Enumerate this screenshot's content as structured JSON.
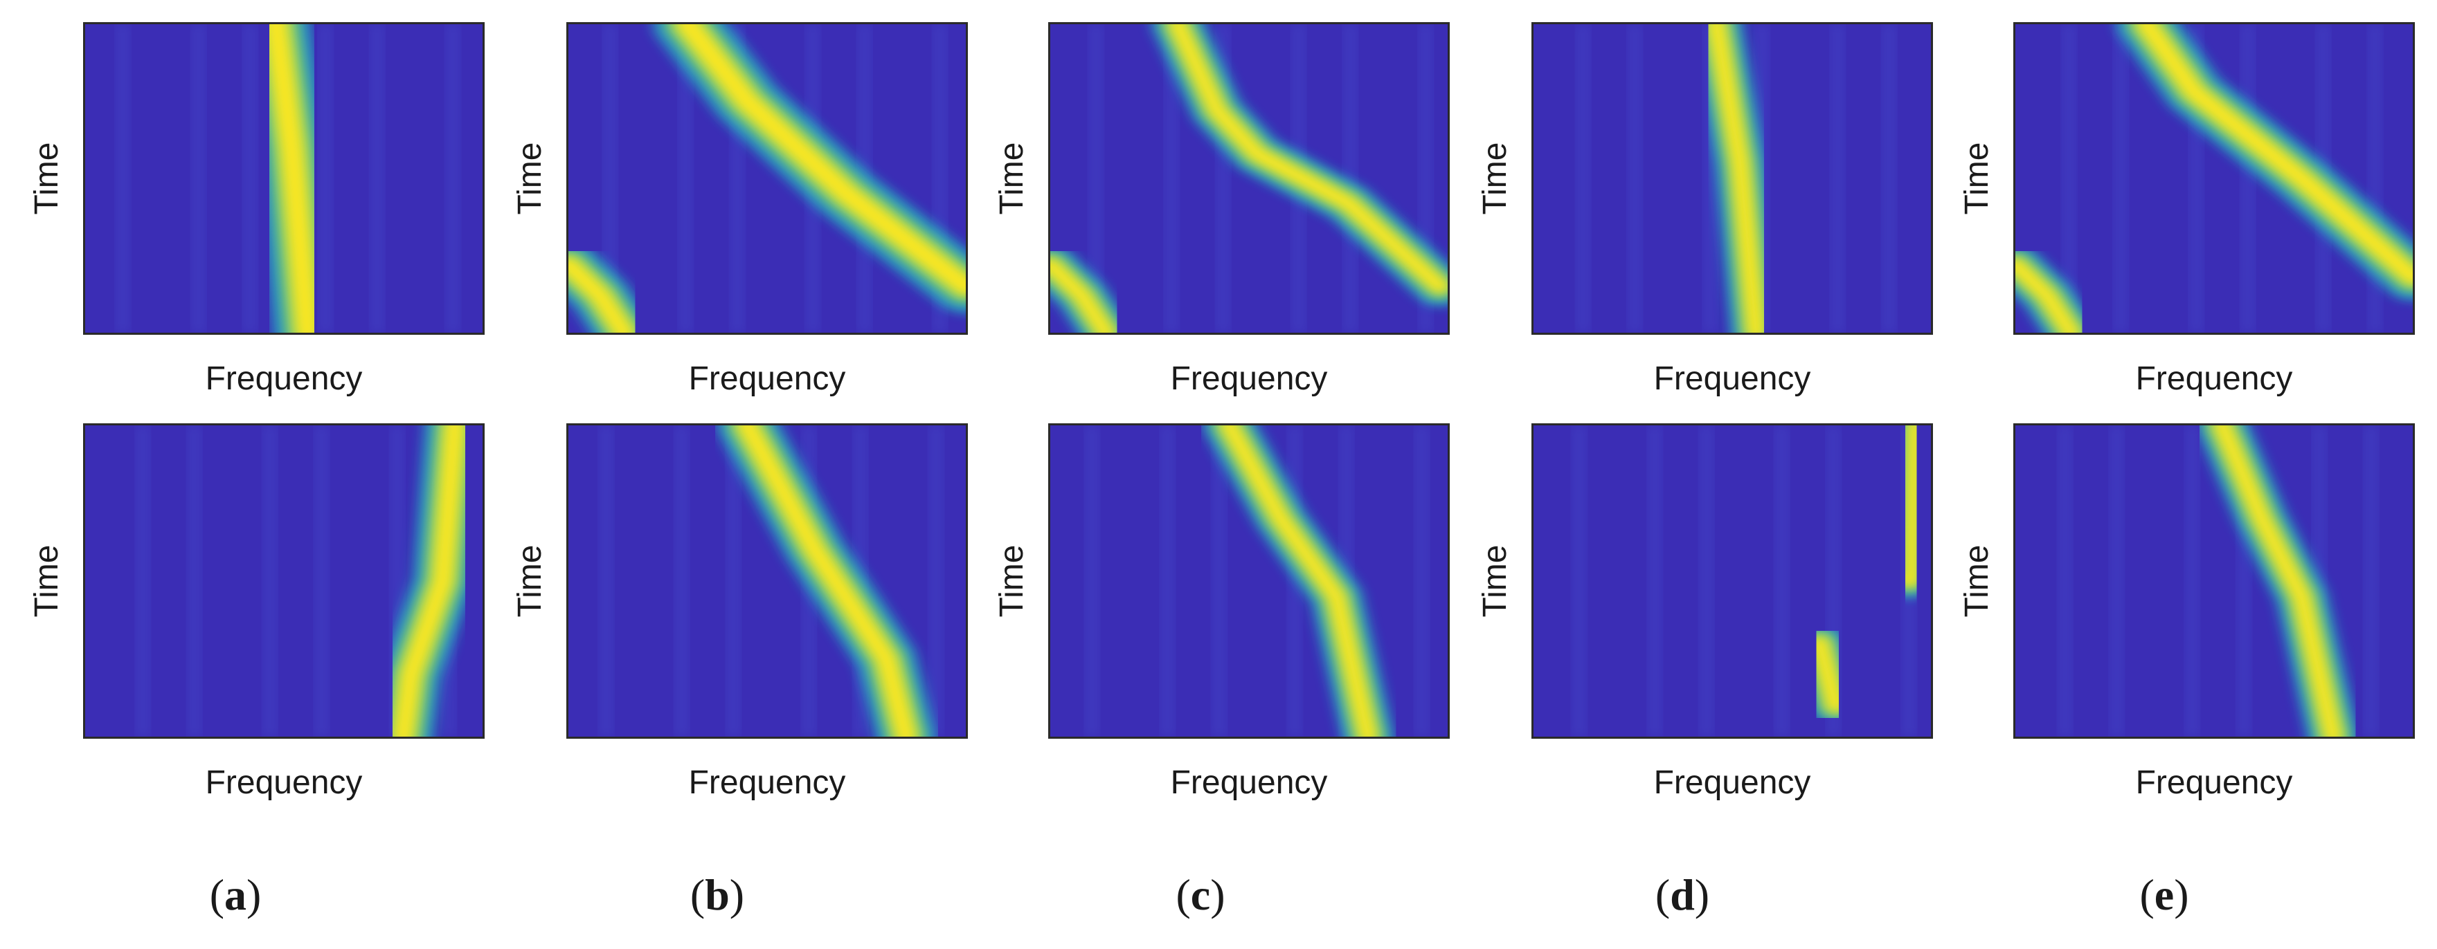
{
  "chart_data": {
    "type": "heatmap",
    "grid_layout": "2 rows x 5 columns",
    "colormap": "parula",
    "colors": {
      "low": "#3b2db5",
      "mid": "#22b5c4",
      "high": "#f8e620"
    },
    "columns": [
      {
        "id": "a",
        "caption": "a"
      },
      {
        "id": "b",
        "caption": "b"
      },
      {
        "id": "c",
        "caption": "c"
      },
      {
        "id": "d",
        "caption": "d"
      },
      {
        "id": "e",
        "caption": "e"
      }
    ],
    "panels": [
      {
        "id": "a-top",
        "column": "a",
        "row": "top",
        "xlabel": "Frequency",
        "ylabel": "Time",
        "ridges": [
          {
            "points": [
              [
                0.48,
                0.0
              ],
              [
                0.52,
                0.4
              ],
              [
                0.56,
                1.0
              ]
            ],
            "width": 0.08
          }
        ]
      },
      {
        "id": "b-top",
        "column": "b",
        "row": "top",
        "xlabel": "Frequency",
        "ylabel": "Time",
        "ridges": [
          {
            "points": [
              [
                0.3,
                0.0
              ],
              [
                0.45,
                0.25
              ],
              [
                0.7,
                0.55
              ],
              [
                1.0,
                0.85
              ]
            ],
            "width": 0.08
          },
          {
            "points": [
              [
                0.0,
                0.78
              ],
              [
                0.08,
                0.88
              ],
              [
                0.14,
                1.0
              ]
            ],
            "width": 0.07
          }
        ]
      },
      {
        "id": "c-top",
        "column": "c",
        "row": "top",
        "xlabel": "Frequency",
        "ylabel": "Time",
        "ridges": [
          {
            "points": [
              [
                0.32,
                0.0
              ],
              [
                0.42,
                0.28
              ],
              [
                0.52,
                0.42
              ],
              [
                0.75,
                0.58
              ],
              [
                0.98,
                0.85
              ]
            ],
            "width": 0.06
          },
          {
            "points": [
              [
                0.0,
                0.78
              ],
              [
                0.08,
                0.88
              ],
              [
                0.14,
                1.0
              ]
            ],
            "width": 0.06
          }
        ]
      },
      {
        "id": "d-top",
        "column": "d",
        "row": "top",
        "xlabel": "Frequency",
        "ylabel": "Time",
        "ridges": [
          {
            "points": [
              [
                0.46,
                0.0
              ],
              [
                0.52,
                0.45
              ],
              [
                0.56,
                1.0
              ]
            ],
            "width": 0.06
          }
        ]
      },
      {
        "id": "e-top",
        "column": "e",
        "row": "top",
        "xlabel": "Frequency",
        "ylabel": "Time",
        "ridges": [
          {
            "points": [
              [
                0.33,
                0.0
              ],
              [
                0.45,
                0.22
              ],
              [
                0.72,
                0.5
              ],
              [
                1.0,
                0.82
              ]
            ],
            "width": 0.07
          },
          {
            "points": [
              [
                0.0,
                0.78
              ],
              [
                0.08,
                0.88
              ],
              [
                0.14,
                1.0
              ]
            ],
            "width": 0.06
          }
        ]
      },
      {
        "id": "a-bottom",
        "column": "a",
        "row": "bottom",
        "xlabel": "Frequency",
        "ylabel": "Time",
        "ridges": [
          {
            "points": [
              [
                0.93,
                0.0
              ],
              [
                0.9,
                0.5
              ],
              [
                0.82,
                0.8
              ],
              [
                0.8,
                1.0
              ]
            ],
            "width": 0.07
          }
        ]
      },
      {
        "id": "b-bottom",
        "column": "b",
        "row": "bottom",
        "xlabel": "Frequency",
        "ylabel": "Time",
        "ridges": [
          {
            "points": [
              [
                0.45,
                0.0
              ],
              [
                0.62,
                0.4
              ],
              [
                0.8,
                0.75
              ],
              [
                0.85,
                1.0
              ]
            ],
            "width": 0.07
          }
        ]
      },
      {
        "id": "c-bottom",
        "column": "c",
        "row": "bottom",
        "xlabel": "Frequency",
        "ylabel": "Time",
        "ridges": [
          {
            "points": [
              [
                0.45,
                0.0
              ],
              [
                0.58,
                0.3
              ],
              [
                0.72,
                0.55
              ],
              [
                0.8,
                1.0
              ]
            ],
            "width": 0.06
          }
        ]
      },
      {
        "id": "d-bottom",
        "column": "d",
        "row": "bottom",
        "xlabel": "Frequency",
        "ylabel": "Time",
        "ridges": [
          {
            "points": [
              [
                0.96,
                0.0
              ],
              [
                0.95,
                0.5
              ],
              [
                0.94,
                0.5
              ]
            ],
            "width": 0.05
          },
          {
            "points": [
              [
                0.72,
                0.7
              ],
              [
                0.76,
                0.9
              ]
            ],
            "width": 0.06
          }
        ]
      },
      {
        "id": "e-bottom",
        "column": "e",
        "row": "bottom",
        "xlabel": "Frequency",
        "ylabel": "Time",
        "ridges": [
          {
            "points": [
              [
                0.52,
                0.0
              ],
              [
                0.62,
                0.3
              ],
              [
                0.72,
                0.55
              ],
              [
                0.8,
                1.0
              ]
            ],
            "width": 0.06
          }
        ]
      }
    ]
  }
}
